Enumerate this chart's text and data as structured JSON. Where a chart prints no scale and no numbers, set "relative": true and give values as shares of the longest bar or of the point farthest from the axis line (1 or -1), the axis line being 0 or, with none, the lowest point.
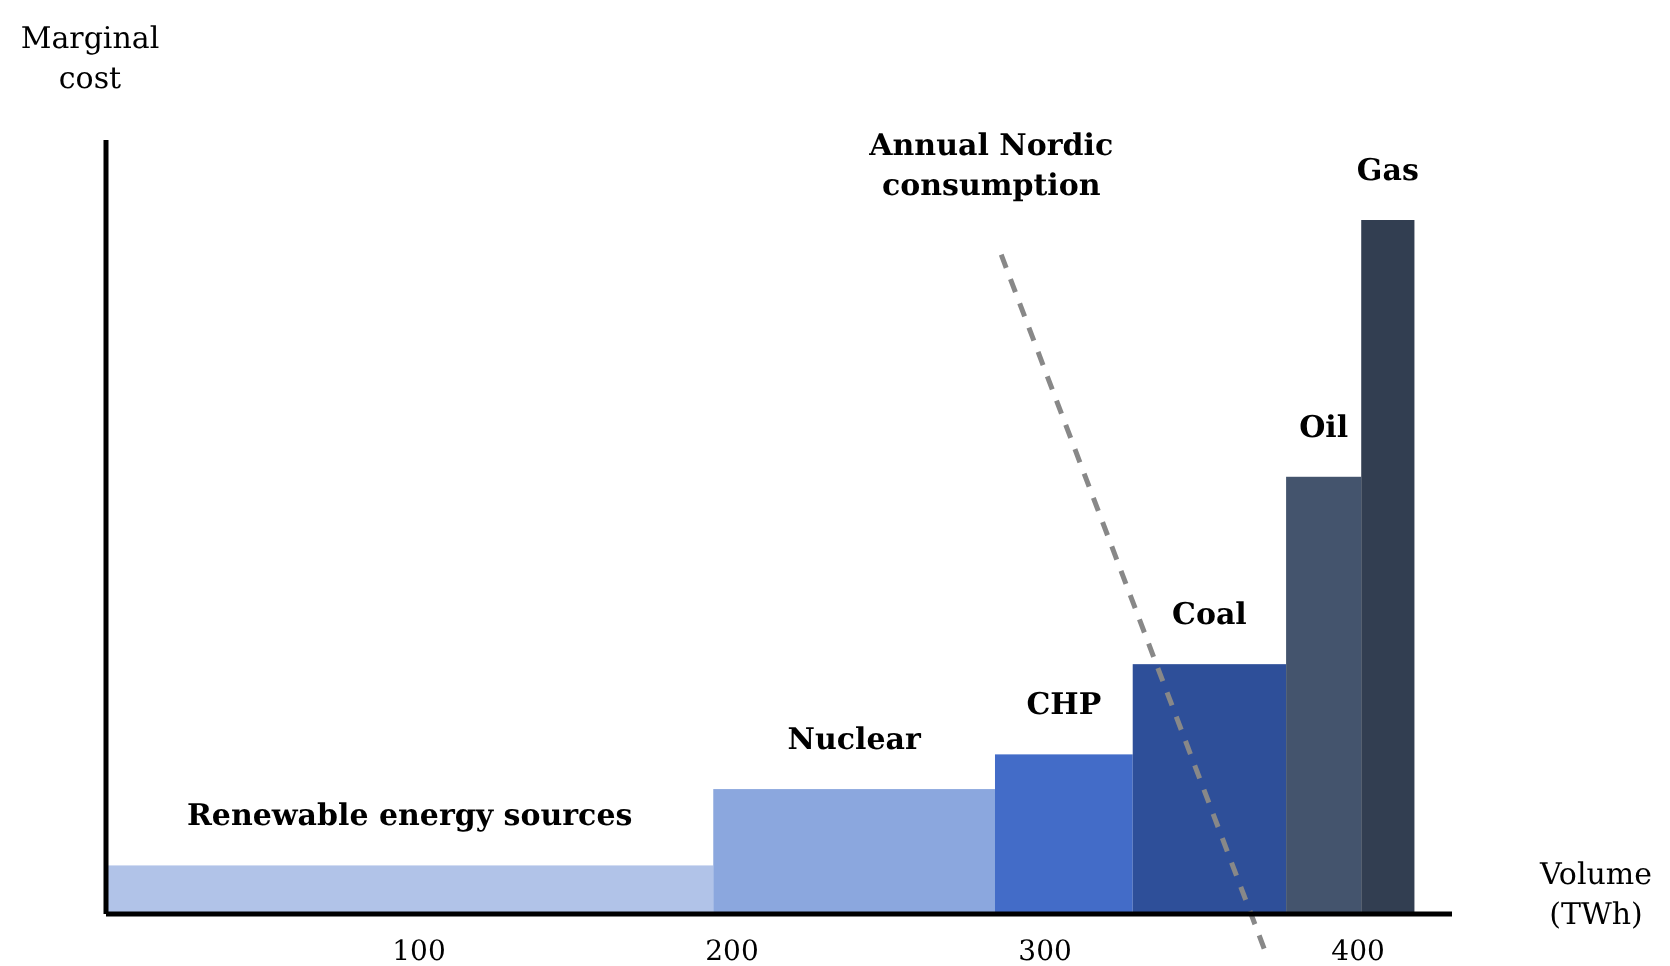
{
  "chart_data": {
    "type": "histogram",
    "relative": true,
    "xlabel": "Volume (TWh)",
    "ylabel": "Marginal cost",
    "bins": [
      0,
      194,
      284,
      328,
      377,
      401,
      418
    ],
    "values": [
      0.07,
      0.18,
      0.23,
      0.36,
      0.63,
      1
    ],
    "colors": [
      "#b1c3e8",
      "#8ba7de",
      "#436cc8",
      "#2e4f99",
      "#44546d",
      "#323e51"
    ],
    "xlim": [
      0,
      430
    ],
    "xticks": [
      100,
      200,
      300,
      400
    ],
    "series": [
      {
        "name": "Annual Nordic consumption",
        "type": "line",
        "color": "#888888",
        "line_style": "dashed",
        "x": [
          286,
          370
        ],
        "values": [
          0.95,
          -0.05
        ]
      }
    ],
    "annotations": [
      "Renewable energy sources",
      "Nuclear",
      "CHP",
      "Coal",
      "Oil",
      "Gas"
    ]
  }
}
